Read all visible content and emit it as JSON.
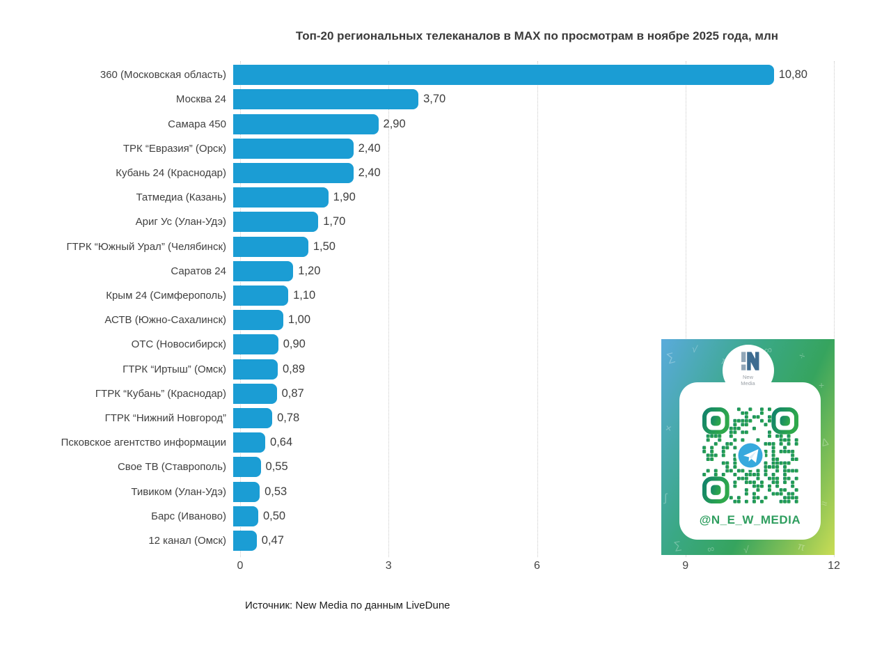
{
  "source": "Источник: New Media по данным LiveDune",
  "chart_data": {
    "type": "bar",
    "orientation": "horizontal",
    "title": "Топ-20 региональных телеканалов в MAX по просмотрам в ноябре 2025 года, млн",
    "categories": [
      "360 (Московская область)",
      "Москва 24",
      "Самара 450",
      "ТРК “Евразия” (Орск)",
      "Кубань 24 (Краснодар)",
      "Татмедиа (Казань)",
      "Ариг Ус (Улан-Удэ)",
      "ГТРК “Южный Урал” (Челябинск)",
      "Саратов 24",
      "Крым 24 (Симферополь)",
      "АСТВ (Южно-Сахалинск)",
      "ОТС (Новосибирск)",
      "ГТРК “Иртыш” (Омск)",
      "ГТРК “Кубань” (Краснодар)",
      "ГТРК “Нижний Новгород”",
      "Псковское агентство информации",
      "Свое ТВ (Ставрополь)",
      "Тивиком (Улан-Удэ)",
      "Барс (Иваново)",
      "12 канал (Омск)"
    ],
    "values": [
      10.8,
      3.7,
      2.9,
      2.4,
      2.4,
      1.9,
      1.7,
      1.5,
      1.2,
      1.1,
      1.0,
      0.9,
      0.89,
      0.87,
      0.78,
      0.64,
      0.55,
      0.53,
      0.5,
      0.47
    ],
    "value_labels": [
      "10,80",
      "3,70",
      "2,90",
      "2,40",
      "2,40",
      "1,90",
      "1,70",
      "1,50",
      "1,20",
      "1,10",
      "1,00",
      "0,90",
      "0,89",
      "0,87",
      "0,78",
      "0,64",
      "0,55",
      "0,53",
      "0,50",
      "0,47"
    ],
    "xlabel": "",
    "ylabel": "",
    "xlim": [
      0,
      12
    ],
    "xticks": [
      "0",
      "3",
      "6",
      "9",
      "12"
    ],
    "grid": "vertical-dotted",
    "legend": "none",
    "bar_color": "#1b9dd4"
  },
  "qr_card": {
    "logo_line1": "New",
    "logo_line2": "Media",
    "handle": "@N_E_W_MEDIA",
    "doodles": [
      "∑",
      "√",
      "π",
      "∞",
      "÷",
      "+",
      "×",
      "Δ",
      "∫",
      "≈"
    ],
    "colors": {
      "gradient_start": "#5aabdc",
      "gradient_mid": "#36a45e",
      "gradient_end": "#cadd55",
      "qr_teal": "#12836b",
      "qr_green": "#2ea84b",
      "handle_green": "#2f9e5f",
      "telegram_blue": "#37a9dd"
    }
  }
}
